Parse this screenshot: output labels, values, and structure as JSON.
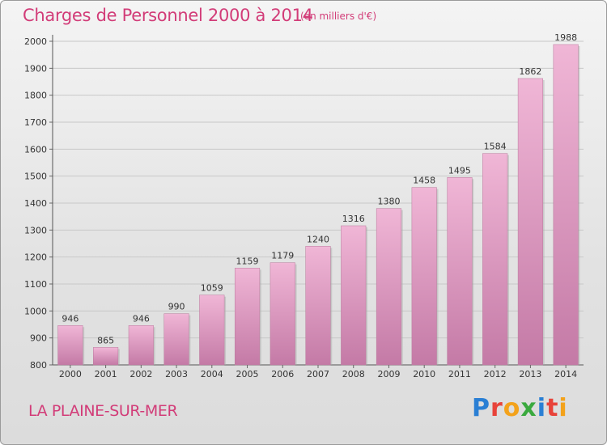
{
  "title": "Charges de Personnel 2000 à 2014",
  "subtitle": "(en milliers d'€)",
  "commune": "LA PLAINE-SUR-MER",
  "logo": {
    "letters": [
      {
        "ch": "P",
        "color": "#2a7fd4"
      },
      {
        "ch": "r",
        "color": "#e8433a"
      },
      {
        "ch": "o",
        "color": "#f3a21b"
      },
      {
        "ch": "x",
        "color": "#3aa93e"
      },
      {
        "ch": "i",
        "color": "#2a7fd4"
      },
      {
        "ch": "t",
        "color": "#e8433a"
      },
      {
        "ch": "i",
        "color": "#f3a21b"
      }
    ]
  },
  "colors": {
    "bar_light": "#f0b6d6",
    "bar_dark": "#c47aa6",
    "accent": "#d23c78",
    "grid": "#c8c8c8"
  },
  "chart_data": {
    "type": "bar",
    "title": "Charges de Personnel 2000 à 2014",
    "xlabel": "",
    "ylabel": "",
    "categories": [
      "2000",
      "2001",
      "2002",
      "2003",
      "2004",
      "2005",
      "2006",
      "2007",
      "2008",
      "2009",
      "2010",
      "2011",
      "2012",
      "2013",
      "2014"
    ],
    "values": [
      946,
      865,
      946,
      990,
      1059,
      1159,
      1179,
      1240,
      1316,
      1380,
      1458,
      1495,
      1584,
      1862,
      1988
    ],
    "ylim": [
      800,
      2000
    ],
    "yticks": [
      800,
      900,
      1000,
      1100,
      1200,
      1300,
      1400,
      1500,
      1600,
      1700,
      1800,
      1900,
      2000
    ],
    "grid": true
  }
}
